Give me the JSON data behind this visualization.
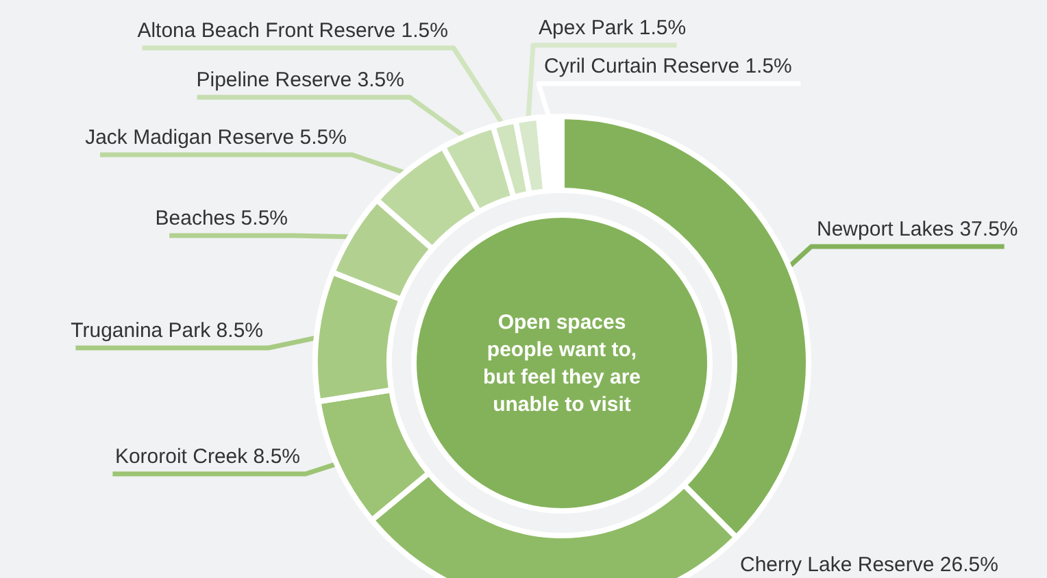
{
  "chart_data": {
    "type": "donut",
    "title": "Open spaces\npeople want to,\nbut feel they are\nunable to visit",
    "categories": [
      "Newport Lakes",
      "Cherry Lake Reserve",
      "Kororoit Creek",
      "Truganina Park",
      "Beaches",
      "Jack Madigan Reserve",
      "Pipeline Reserve",
      "Altona Beach Front Reserve",
      "Apex Park",
      "Cyril Curtain Reserve"
    ],
    "values": [
      37.5,
      26.5,
      8.5,
      8.5,
      5.5,
      5.5,
      3.5,
      1.5,
      1.5,
      1.5
    ],
    "value_labels": [
      "37.5%",
      "26.5%",
      "8.5%",
      "8.5%",
      "5.5%",
      "5.5%",
      "3.5%",
      "1.5%",
      "1.5%",
      "1.5%"
    ],
    "colors": [
      "#84b25a",
      "#8fbb66",
      "#9cc474",
      "#a7ca82",
      "#b2d191",
      "#bcd89f",
      "#c6deae",
      "#d0e4bd",
      "#d8e8ca",
      "#ffffff"
    ]
  }
}
